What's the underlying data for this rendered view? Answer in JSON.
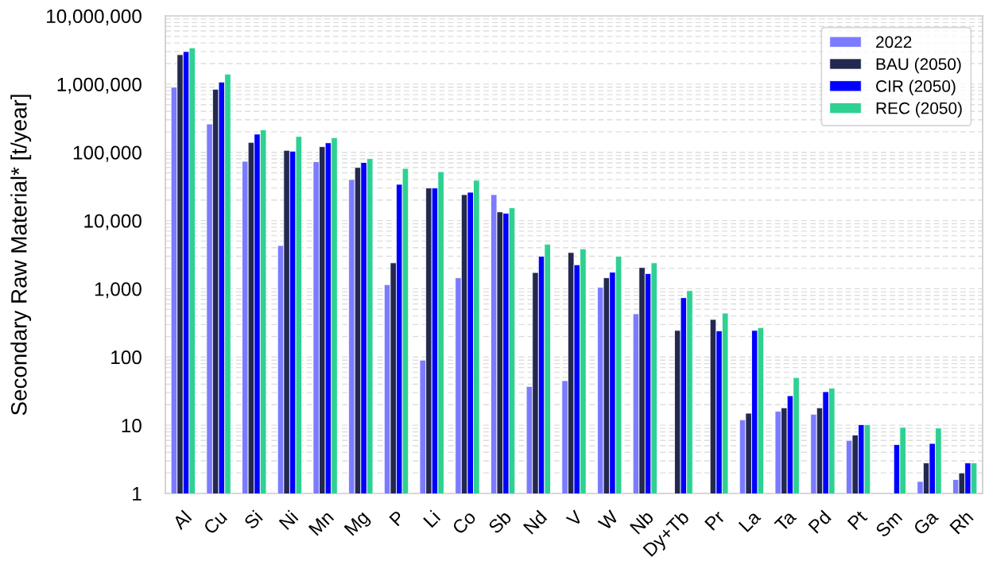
{
  "chart_data": {
    "type": "bar",
    "ylabel": "Secondary Raw Material* [t/year]",
    "categories": [
      "Al",
      "Cu",
      "Si",
      "Ni",
      "Mn",
      "Mg",
      "P",
      "Li",
      "Co",
      "Sb",
      "Nd",
      "V",
      "W",
      "Nb",
      "Dy+Tb",
      "Pr",
      "La",
      "Ta",
      "Pd",
      "Pt",
      "Sm",
      "Ga",
      "Rh"
    ],
    "series": [
      {
        "name": "2022",
        "color": "#7b7bff",
        "values": [
          900000,
          260000,
          74000,
          4300,
          73000,
          40000,
          1150,
          90,
          1450,
          24000,
          37,
          45,
          1050,
          430,
          null,
          null,
          12,
          16,
          14.5,
          6,
          null,
          1.5,
          1.6
        ]
      },
      {
        "name": "BAU (2050)",
        "color": "#232850",
        "values": [
          2700000,
          840000,
          140000,
          107000,
          121000,
          60000,
          2400,
          30000,
          24000,
          13400,
          1730,
          3400,
          1450,
          2050,
          245,
          355,
          15,
          18,
          18,
          7.2,
          null,
          2.8,
          2
        ]
      },
      {
        "name": "CIR (2050)",
        "color": "#0000ff",
        "values": [
          3000000,
          1070000,
          185000,
          104000,
          138000,
          71000,
          34000,
          30000,
          26000,
          12800,
          3000,
          2250,
          1750,
          1670,
          740,
          242,
          245,
          27,
          31,
          10.2,
          5.2,
          5.4,
          2.8
        ]
      },
      {
        "name": "REC (2050)",
        "color": "#2ed192",
        "values": [
          3400000,
          1400000,
          214000,
          171000,
          164000,
          81000,
          58000,
          52000,
          39000,
          15400,
          4500,
          3850,
          3000,
          2400,
          940,
          440,
          270,
          50,
          35,
          10.2,
          9.3,
          9.1,
          2.8
        ]
      }
    ],
    "log": true,
    "ylim": [
      1,
      10000000
    ],
    "yticks": [
      1,
      10,
      100,
      {
        "value": 1000,
        "label": "1,000"
      },
      {
        "value": 10000,
        "label": "10,000"
      },
      {
        "value": 100000,
        "label": "100,000"
      },
      {
        "value": 1000000,
        "label": "1,000,000"
      },
      {
        "value": 10000000,
        "label": "10,000,000"
      }
    ],
    "grid": "y",
    "legend": "top right"
  }
}
